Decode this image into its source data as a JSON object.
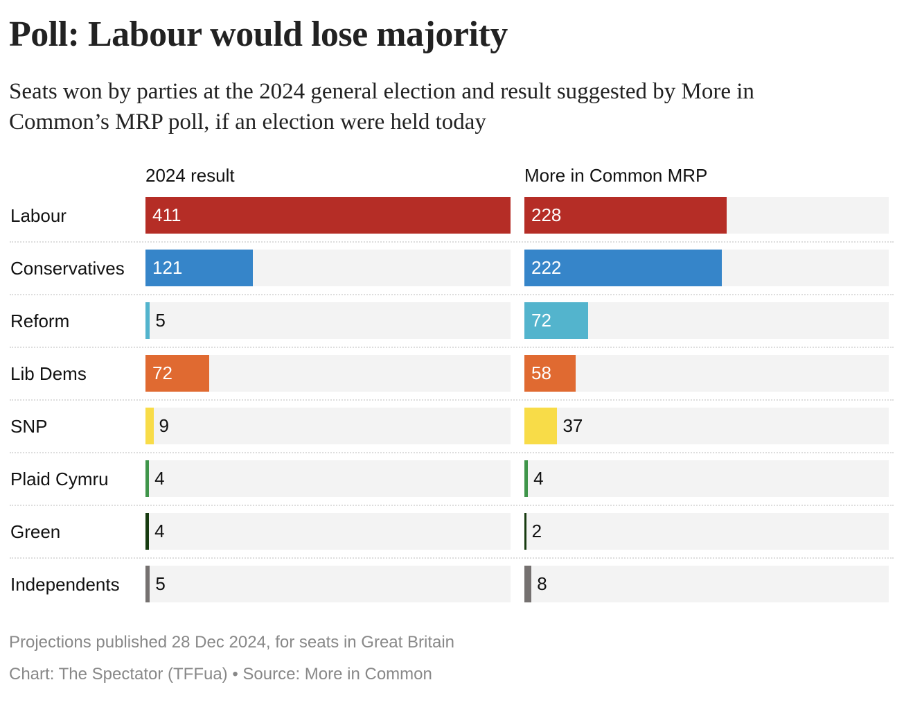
{
  "chart_data": {
    "type": "bar",
    "title": "Poll: Labour would lose majority",
    "subtitle": "Seats won by parties at the 2024 general election and result suggested by More in Common’s MRP poll, if an election were held today",
    "categories": [
      "Labour",
      "Conservatives",
      "Reform",
      "Lib Dems",
      "SNP",
      "Plaid Cymru",
      "Green",
      "Independents"
    ],
    "colors": [
      "#b52d26",
      "#3685c9",
      "#53b4cd",
      "#e06a31",
      "#f8dc48",
      "#3f954a",
      "#173b10",
      "#757170"
    ],
    "series": [
      {
        "name": "2024 result",
        "values": [
          411,
          121,
          5,
          72,
          9,
          4,
          4,
          5
        ]
      },
      {
        "name": "More in Common MRP",
        "values": [
          228,
          222,
          72,
          58,
          37,
          4,
          2,
          8
        ]
      }
    ],
    "xlim": [
      0,
      411
    ]
  },
  "footer": {
    "note": "Projections published 28 Dec 2024, for seats in Great Britain",
    "credit": "Chart: The Spectator (TFFua) • Source: More in Common"
  }
}
